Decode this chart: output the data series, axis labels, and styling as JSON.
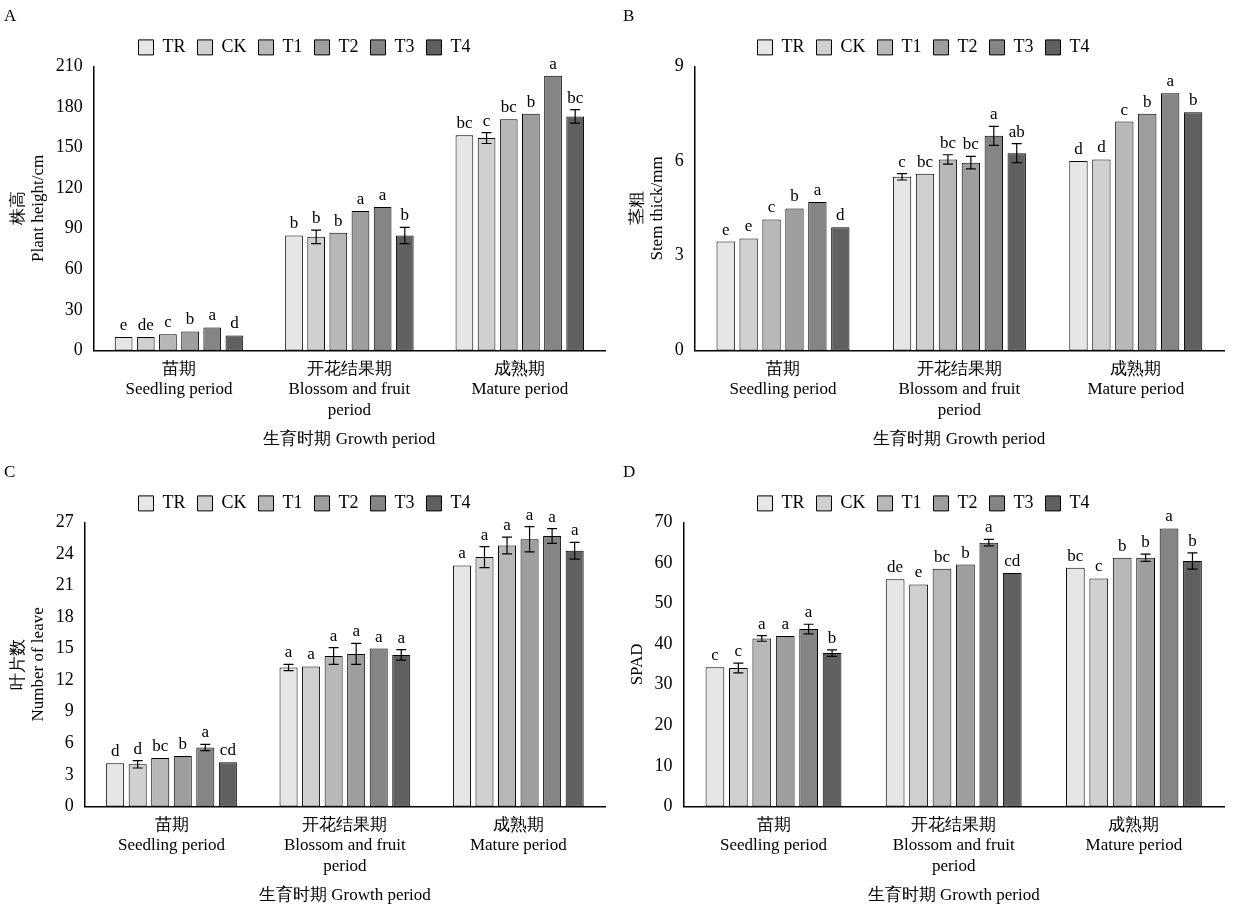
{
  "chart_data": [
    {
      "type": "bar",
      "title": "A",
      "xlabel": "生育时期 Growth period",
      "ylabel": "株高\nPlant height/cm",
      "categories": [
        "苗期\nSeedling period",
        "开花结果期\nBlossom and fruit\nperiod",
        "成熟期\nMature period"
      ],
      "ylim": [
        0,
        210
      ],
      "yticks": [
        0,
        30,
        60,
        90,
        120,
        150,
        180,
        210
      ],
      "grid": false,
      "legend": "top",
      "series": [
        {
          "name": "TR",
          "color": "#e6e6e6",
          "values": [
            10,
            85,
            159
          ],
          "value_labels": [
            "e",
            "b",
            "bc"
          ]
        },
        {
          "name": "CK",
          "color": "#d0d0d0",
          "values": [
            10,
            84,
            157
          ],
          "errors": [
            null,
            5,
            4
          ],
          "value_labels": [
            "de",
            "b",
            "c"
          ]
        },
        {
          "name": "T1",
          "color": "#b8b8b8",
          "values": [
            12,
            87,
            171
          ],
          "value_labels": [
            "c",
            "b",
            "bc"
          ]
        },
        {
          "name": "T2",
          "color": "#9e9e9e",
          "values": [
            14,
            103,
            175
          ],
          "value_labels": [
            "b",
            "a",
            "b"
          ]
        },
        {
          "name": "T3",
          "color": "#858585",
          "values": [
            17,
            106,
            203
          ],
          "value_labels": [
            "a",
            "a",
            "a"
          ]
        },
        {
          "name": "T4",
          "color": "#606060",
          "values": [
            11,
            85,
            173
          ],
          "errors": [
            null,
            6,
            5
          ],
          "value_labels": [
            "d",
            "b",
            "bc"
          ]
        }
      ]
    },
    {
      "type": "bar",
      "title": "B",
      "xlabel": "生育时期 Growth period",
      "ylabel": "茎粗\nStem thick/mm",
      "categories": [
        "苗期\nSeedling period",
        "开花结果期\nBlossom and fruit\nperiod",
        "成熟期\nMature period"
      ],
      "ylim": [
        0,
        9
      ],
      "yticks": [
        0,
        3,
        6,
        9
      ],
      "grid": false,
      "legend": "top",
      "series": [
        {
          "name": "TR",
          "color": "#e6e6e6",
          "values": [
            3.45,
            5.5,
            6.0
          ],
          "errors": [
            null,
            0.1,
            null
          ],
          "value_labels": [
            "e",
            "c",
            "d"
          ]
        },
        {
          "name": "CK",
          "color": "#d0d0d0",
          "values": [
            3.55,
            5.6,
            6.05
          ],
          "value_labels": [
            "e",
            "bc",
            "d"
          ]
        },
        {
          "name": "T1",
          "color": "#b8b8b8",
          "values": [
            4.15,
            6.05,
            7.25
          ],
          "errors": [
            null,
            0.15,
            null
          ],
          "value_labels": [
            "c",
            "bc",
            "c"
          ]
        },
        {
          "name": "T2",
          "color": "#9e9e9e",
          "values": [
            4.5,
            5.95,
            7.5
          ],
          "errors": [
            null,
            0.2,
            null
          ],
          "value_labels": [
            "b",
            "bc",
            "b"
          ]
        },
        {
          "name": "T3",
          "color": "#858585",
          "values": [
            4.7,
            6.8,
            8.15
          ],
          "errors": [
            null,
            0.3,
            null
          ],
          "value_labels": [
            "a",
            "a",
            "a"
          ]
        },
        {
          "name": "T4",
          "color": "#606060",
          "values": [
            3.9,
            6.25,
            7.55
          ],
          "errors": [
            null,
            0.3,
            null
          ],
          "value_labels": [
            "d",
            "ab",
            "b"
          ]
        }
      ]
    },
    {
      "type": "bar",
      "title": "C",
      "xlabel": "生育时期 Growth period",
      "ylabel": "叶片数\nNumber of leave",
      "categories": [
        "苗期\nSeedling period",
        "开花结果期\nBlossom and fruit\nperiod",
        "成熟期\nMature period"
      ],
      "ylim": [
        0,
        27
      ],
      "yticks": [
        0,
        3,
        6,
        9,
        12,
        15,
        18,
        21,
        24,
        27
      ],
      "grid": false,
      "legend": "top",
      "series": [
        {
          "name": "TR",
          "color": "#e6e6e6",
          "values": [
            4.1,
            13.2,
            22.9
          ],
          "errors": [
            null,
            0.3,
            null
          ],
          "value_labels": [
            "d",
            "a",
            "a"
          ]
        },
        {
          "name": "CK",
          "color": "#d0d0d0",
          "values": [
            4.0,
            13.3,
            23.7
          ],
          "errors": [
            0.35,
            null,
            1.0
          ],
          "value_labels": [
            "d",
            "a",
            "a"
          ]
        },
        {
          "name": "T1",
          "color": "#b8b8b8",
          "values": [
            4.6,
            14.3,
            24.8
          ],
          "errors": [
            null,
            0.8,
            0.8
          ],
          "value_labels": [
            "bc",
            "a",
            "a"
          ]
        },
        {
          "name": "T2",
          "color": "#9e9e9e",
          "values": [
            4.8,
            14.5,
            25.4
          ],
          "errors": [
            null,
            1.0,
            1.2
          ],
          "value_labels": [
            "b",
            "a",
            "a"
          ]
        },
        {
          "name": "T3",
          "color": "#858585",
          "values": [
            5.6,
            15.0,
            25.7
          ],
          "errors": [
            0.3,
            null,
            0.7
          ],
          "value_labels": [
            "a",
            "a",
            "a"
          ]
        },
        {
          "name": "T4",
          "color": "#606060",
          "values": [
            4.2,
            14.4,
            24.3
          ],
          "errors": [
            null,
            0.5,
            0.8
          ],
          "value_labels": [
            "cd",
            "a",
            "a"
          ]
        }
      ]
    },
    {
      "type": "bar",
      "title": "D",
      "xlabel": "生育时期 Growth period",
      "ylabel": "SPAD",
      "categories": [
        "苗期\nSeedling period",
        "开花结果期\nBlossom and fruit\nperiod",
        "成熟期\nMature period"
      ],
      "ylim": [
        0,
        70
      ],
      "yticks": [
        0,
        10,
        20,
        30,
        40,
        50,
        60,
        70
      ],
      "grid": false,
      "legend": "top",
      "series": [
        {
          "name": "TR",
          "color": "#e6e6e6",
          "values": [
            34.3,
            56.0,
            58.8
          ],
          "value_labels": [
            "c",
            "de",
            "bc"
          ]
        },
        {
          "name": "CK",
          "color": "#d0d0d0",
          "values": [
            34.1,
            54.7,
            56.2
          ],
          "errors": [
            1.2,
            null,
            null
          ],
          "value_labels": [
            "c",
            "e",
            "c"
          ]
        },
        {
          "name": "T1",
          "color": "#b8b8b8",
          "values": [
            41.4,
            58.6,
            61.3
          ],
          "errors": [
            0.7,
            null,
            null
          ],
          "value_labels": [
            "a",
            "bc",
            "b"
          ]
        },
        {
          "name": "T2",
          "color": "#9e9e9e",
          "values": [
            42.0,
            59.6,
            61.3
          ],
          "errors": [
            null,
            null,
            0.9
          ],
          "value_labels": [
            "a",
            "b",
            "b"
          ]
        },
        {
          "name": "T3",
          "color": "#858585",
          "values": [
            43.7,
            65.0,
            68.5
          ],
          "errors": [
            1.2,
            0.8,
            null
          ],
          "value_labels": [
            "a",
            "a",
            "a"
          ]
        },
        {
          "name": "T4",
          "color": "#606060",
          "values": [
            37.8,
            57.5,
            60.5
          ],
          "errors": [
            0.8,
            null,
            2.0
          ],
          "value_labels": [
            "b",
            "cd",
            "b"
          ]
        }
      ]
    }
  ]
}
